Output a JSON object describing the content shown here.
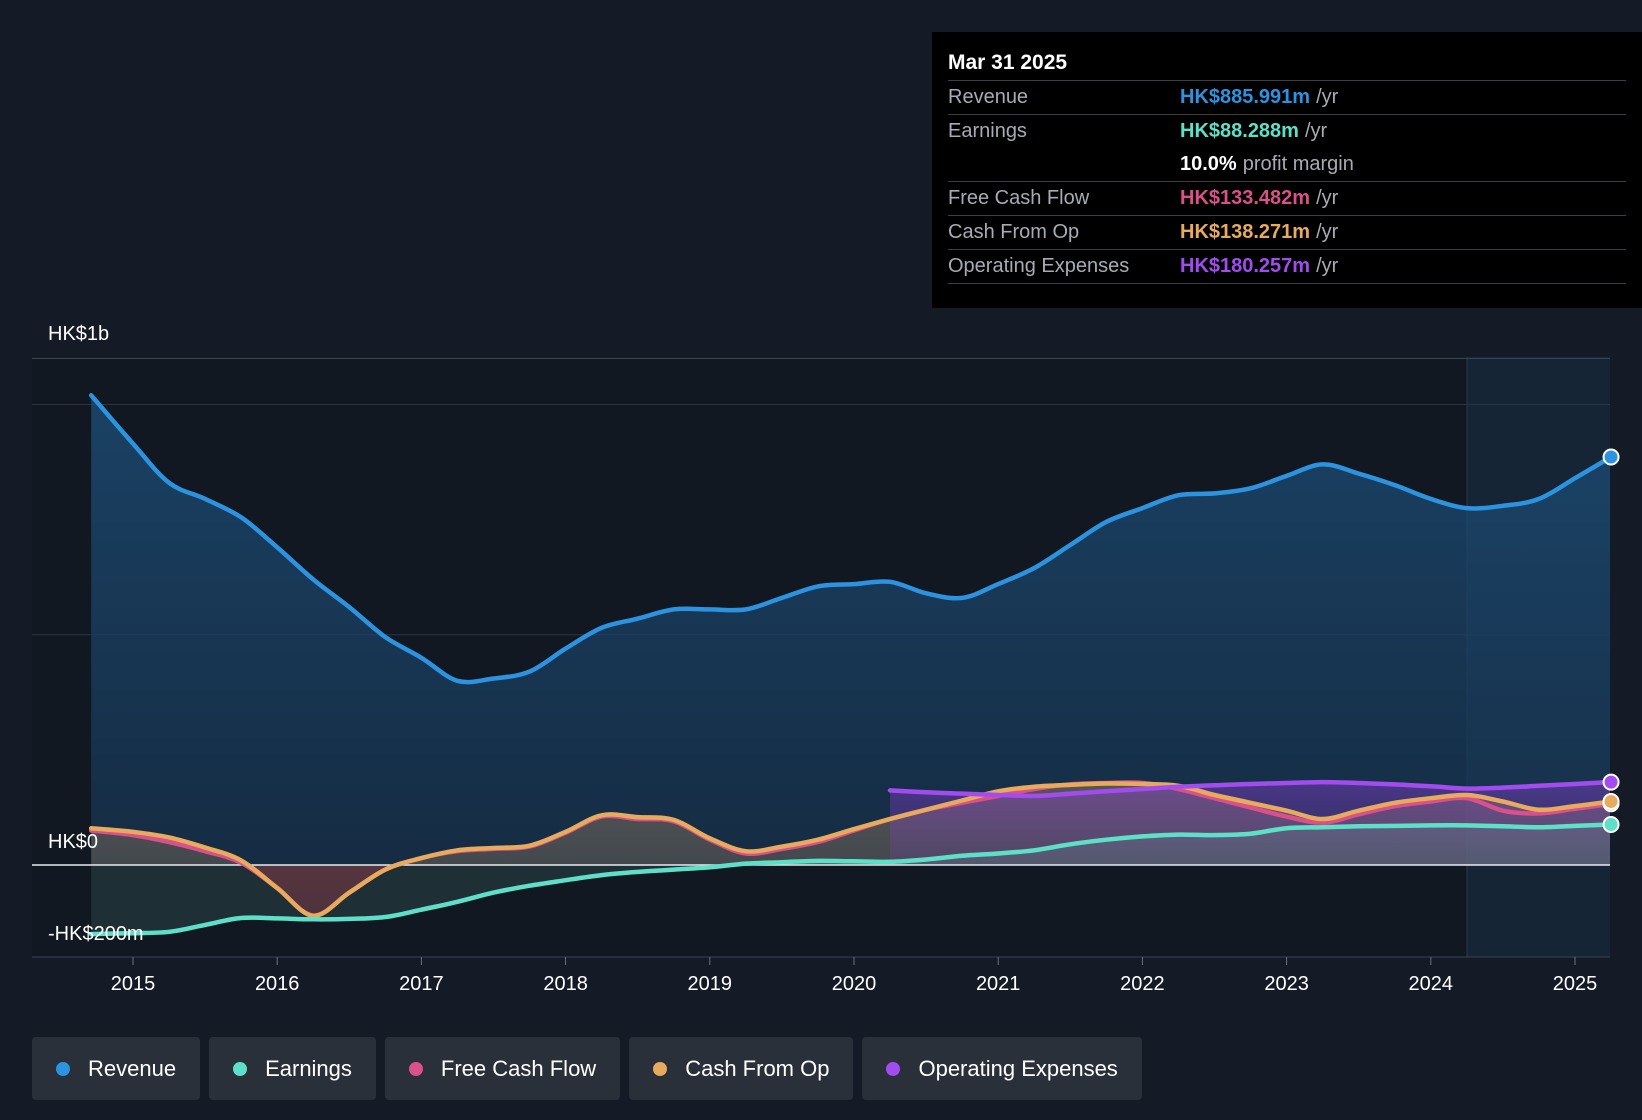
{
  "tooltip": {
    "date": "Mar 31 2025",
    "rows": [
      {
        "label": "Revenue",
        "value": "HK$885.991m",
        "unit": "/yr",
        "color": "#2b93e0"
      },
      {
        "label": "Earnings",
        "value": "HK$88.288m",
        "unit": "/yr",
        "color": "#5ee0c8"
      },
      {
        "label": "",
        "value": "10.0%",
        "unit": "profit margin",
        "color": "#ffffff"
      },
      {
        "label": "Free Cash Flow",
        "value": "HK$133.482m",
        "unit": "/yr",
        "color": "#d9508a"
      },
      {
        "label": "Cash From Op",
        "value": "HK$138.271m",
        "unit": "/yr",
        "color": "#e8aa5c"
      },
      {
        "label": "Operating Expenses",
        "value": "HK$180.257m",
        "unit": "/yr",
        "color": "#a24cf0"
      }
    ]
  },
  "legend": [
    {
      "label": "Revenue",
      "color": "#2b93e0"
    },
    {
      "label": "Earnings",
      "color": "#5ee0c8"
    },
    {
      "label": "Free Cash Flow",
      "color": "#d9508a"
    },
    {
      "label": "Cash From Op",
      "color": "#e8aa5c"
    },
    {
      "label": "Operating Expenses",
      "color": "#a24cf0"
    }
  ],
  "chart_data": {
    "type": "area",
    "title": "",
    "xlabel": "",
    "ylabel": "",
    "y_tick_labels": [
      "HK$1b",
      "HK$0",
      "-HK$200m"
    ],
    "ylim": [
      -200,
      1100
    ],
    "xlim": [
      2014.75,
      2025.25
    ],
    "x_ticks": [
      2015,
      2016,
      2017,
      2018,
      2019,
      2020,
      2021,
      2022,
      2023,
      2024,
      2025
    ],
    "x_tick_labels": [
      "2015",
      "2016",
      "2017",
      "2018",
      "2019",
      "2020",
      "2021",
      "2022",
      "2023",
      "2024",
      "2025"
    ],
    "units": "HK$ millions",
    "grid": true,
    "legend_position": "bottom",
    "series": [
      {
        "name": "Revenue",
        "color": "#2b93e0",
        "x": [
          2014.71,
          2015.0,
          2015.25,
          2015.5,
          2015.75,
          2016.0,
          2016.25,
          2016.5,
          2016.75,
          2017.0,
          2017.25,
          2017.5,
          2017.75,
          2018.0,
          2018.25,
          2018.5,
          2018.75,
          2019.0,
          2019.25,
          2019.5,
          2019.75,
          2020.0,
          2020.25,
          2020.5,
          2020.75,
          2021.0,
          2021.25,
          2021.5,
          2021.75,
          2022.0,
          2022.25,
          2022.5,
          2022.75,
          2023.0,
          2023.25,
          2023.5,
          2023.75,
          2024.0,
          2024.25,
          2024.5,
          2024.75,
          2025.0,
          2025.25
        ],
        "values": [
          1020,
          915,
          830,
          795,
          755,
          690,
          620,
          560,
          495,
          450,
          400,
          405,
          420,
          470,
          515,
          535,
          555,
          555,
          555,
          580,
          605,
          610,
          615,
          590,
          580,
          610,
          645,
          695,
          745,
          775,
          803,
          807,
          818,
          845,
          870,
          850,
          825,
          795,
          775,
          780,
          795,
          840,
          886
        ]
      },
      {
        "name": "Earnings",
        "color": "#5ee0c8",
        "x": [
          2014.71,
          2015.0,
          2015.25,
          2015.5,
          2015.75,
          2016.0,
          2016.25,
          2016.5,
          2016.75,
          2017.0,
          2017.25,
          2017.5,
          2017.75,
          2018.0,
          2018.25,
          2018.5,
          2018.75,
          2019.0,
          2019.25,
          2019.5,
          2019.75,
          2020.0,
          2020.25,
          2020.5,
          2020.75,
          2021.0,
          2021.25,
          2021.5,
          2021.75,
          2022.0,
          2022.25,
          2022.5,
          2022.75,
          2023.0,
          2023.25,
          2023.5,
          2023.75,
          2024.0,
          2024.25,
          2024.5,
          2024.75,
          2025.0,
          2025.25
        ],
        "values": [
          -150,
          -148,
          -145,
          -130,
          -115,
          -116,
          -118,
          -117,
          -113,
          -97,
          -80,
          -60,
          -45,
          -33,
          -22,
          -15,
          -10,
          -5,
          3,
          6,
          9,
          8,
          7,
          12,
          20,
          25,
          32,
          45,
          55,
          62,
          66,
          65,
          68,
          80,
          82,
          84,
          85,
          86,
          86,
          84,
          82,
          85,
          88
        ]
      },
      {
        "name": "Free Cash Flow",
        "color": "#d9508a",
        "x": [
          2014.71,
          2015.0,
          2015.25,
          2015.5,
          2015.75,
          2016.0,
          2016.25,
          2016.5,
          2016.75,
          2017.0,
          2017.25,
          2017.5,
          2017.75,
          2018.0,
          2018.25,
          2018.5,
          2018.75,
          2019.0,
          2019.25,
          2019.5,
          2019.75,
          2020.0,
          2020.25,
          2020.5,
          2020.75,
          2021.0,
          2021.25,
          2021.5,
          2021.75,
          2022.0,
          2022.25,
          2022.5,
          2022.75,
          2023.0,
          2023.25,
          2023.5,
          2023.75,
          2024.0,
          2024.25,
          2024.5,
          2024.75,
          2025.0,
          2025.25
        ],
        "values": [
          75,
          65,
          50,
          30,
          5,
          -50,
          -110,
          -60,
          -10,
          15,
          30,
          35,
          40,
          70,
          105,
          100,
          95,
          55,
          25,
          35,
          50,
          75,
          100,
          120,
          135,
          150,
          165,
          175,
          178,
          178,
          165,
          145,
          125,
          105,
          92,
          110,
          128,
          138,
          145,
          118,
          112,
          122,
          133
        ]
      },
      {
        "name": "Cash From Op",
        "color": "#e8aa5c",
        "x": [
          2014.71,
          2015.0,
          2015.25,
          2015.5,
          2015.75,
          2016.0,
          2016.25,
          2016.5,
          2016.75,
          2017.0,
          2017.25,
          2017.5,
          2017.75,
          2018.0,
          2018.25,
          2018.5,
          2018.75,
          2019.0,
          2019.25,
          2019.5,
          2019.75,
          2020.0,
          2020.25,
          2020.5,
          2020.75,
          2021.0,
          2021.25,
          2021.5,
          2021.75,
          2022.0,
          2022.25,
          2022.5,
          2022.75,
          2023.0,
          2023.25,
          2023.5,
          2023.75,
          2024.0,
          2024.25,
          2024.5,
          2024.75,
          2025.0,
          2025.25
        ],
        "values": [
          80,
          72,
          60,
          38,
          10,
          -50,
          -110,
          -60,
          -10,
          15,
          32,
          37,
          42,
          72,
          108,
          104,
          98,
          58,
          30,
          40,
          55,
          78,
          100,
          120,
          140,
          160,
          170,
          174,
          177,
          176,
          172,
          152,
          135,
          118,
          100,
          118,
          135,
          145,
          152,
          138,
          120,
          128,
          138
        ]
      },
      {
        "name": "Operating Expenses",
        "color": "#a24cf0",
        "x": [
          2020.25,
          2020.5,
          2020.75,
          2021.0,
          2021.25,
          2021.5,
          2021.75,
          2022.0,
          2022.25,
          2022.5,
          2022.75,
          2023.0,
          2023.25,
          2023.5,
          2023.75,
          2024.0,
          2024.25,
          2024.5,
          2024.75,
          2025.0,
          2025.25
        ],
        "values": [
          162,
          158,
          155,
          152,
          150,
          155,
          160,
          165,
          170,
          173,
          176,
          178,
          180,
          178,
          175,
          171,
          166,
          168,
          172,
          176,
          180
        ]
      }
    ]
  }
}
